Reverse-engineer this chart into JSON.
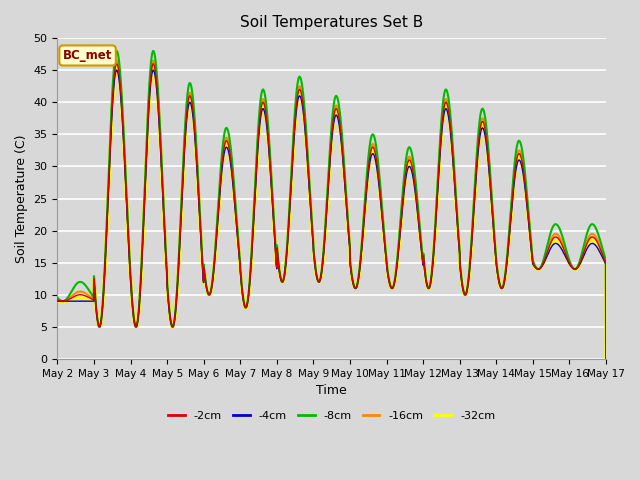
{
  "title": "Soil Temperatures Set B",
  "xlabel": "Time",
  "ylabel": "Soil Temperature (C)",
  "ylim": [
    0,
    50
  ],
  "xlim": [
    0,
    15
  ],
  "annotation": "BC_met",
  "bg_color": "#d8d8d8",
  "plot_bg_color": "#d8d8d8",
  "series_colors": {
    "-2cm": "#dd0000",
    "-4cm": "#0000cc",
    "-8cm": "#00bb00",
    "-16cm": "#ff8800",
    "-32cm": "#ffff00"
  },
  "series_linewidths": {
    "-2cm": 1.0,
    "-4cm": 1.0,
    "-8cm": 1.5,
    "-16cm": 1.5,
    "-32cm": 2.5
  },
  "grid_color": "#ffffff",
  "n_days": 15,
  "start_day": 2,
  "points_per_day": 144,
  "day_peaks": [
    10,
    46,
    46,
    41,
    34,
    40,
    42,
    39,
    33,
    31,
    40,
    37,
    32,
    19,
    19
  ],
  "day_troughs": [
    9,
    5,
    5,
    5,
    10,
    8,
    12,
    12,
    11,
    11,
    11,
    10,
    11,
    14,
    14
  ],
  "peak_time": 0.62,
  "trough_time": 0.15,
  "depth_peak_offsets": [
    0,
    -1,
    2,
    0.5,
    -0.5
  ],
  "depth_trough_offsets": [
    0,
    0,
    0,
    0,
    0
  ]
}
